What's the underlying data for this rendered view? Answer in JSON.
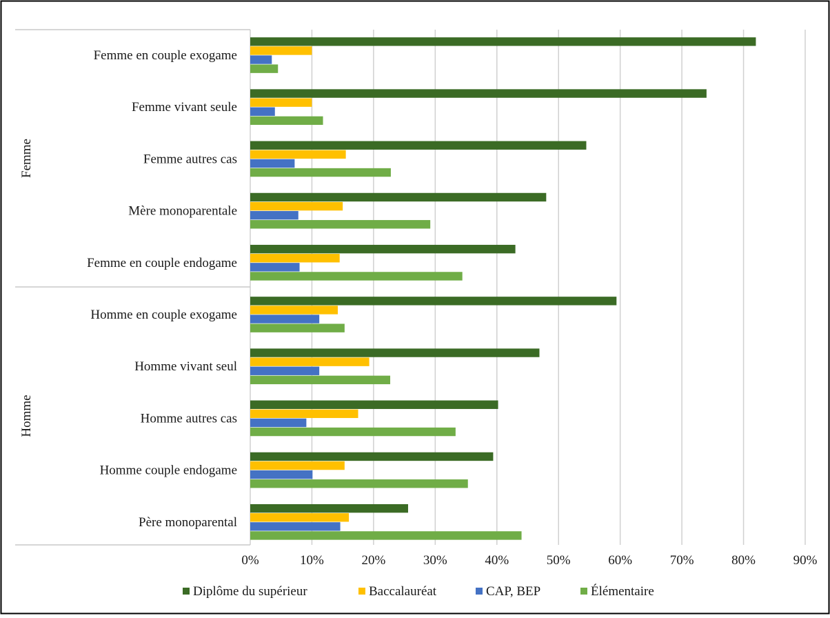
{
  "chart_data": {
    "type": "bar",
    "orientation": "horizontal",
    "title": "",
    "xlabel": "",
    "ylabel": "",
    "xlim": [
      0,
      0.9
    ],
    "x_ticks": [
      "0%",
      "10%",
      "20%",
      "30%",
      "40%",
      "50%",
      "60%",
      "70%",
      "80%",
      "90%"
    ],
    "grid": true,
    "legend_position": "bottom",
    "groups": [
      {
        "name": "Femme",
        "categories": [
          "Femme en couple exogame",
          "Femme vivant seule",
          "Femme autres cas",
          "Mère monoparentale",
          "Femme en couple endogame"
        ]
      },
      {
        "name": "Homme",
        "categories": [
          "Homme en couple exogame",
          "Homme vivant seul",
          "Homme autres cas",
          "Homme couple endogame",
          "Père monoparental"
        ]
      }
    ],
    "series": [
      {
        "name": "Diplôme du supérieur",
        "color": "#3b6b25",
        "values": [
          0.82,
          0.74,
          0.545,
          0.48,
          0.43,
          0.594,
          0.469,
          0.402,
          0.394,
          0.256
        ]
      },
      {
        "name": "Baccalauréat",
        "color": "#ffc000",
        "values": [
          0.1,
          0.1,
          0.155,
          0.15,
          0.145,
          0.142,
          0.193,
          0.175,
          0.153,
          0.16
        ]
      },
      {
        "name": "CAP, BEP",
        "color": "#4472c4",
        "values": [
          0.035,
          0.04,
          0.072,
          0.078,
          0.08,
          0.112,
          0.112,
          0.091,
          0.101,
          0.146
        ]
      },
      {
        "name": "Élémentaire",
        "color": "#70ad47",
        "values": [
          0.045,
          0.118,
          0.228,
          0.292,
          0.344,
          0.153,
          0.227,
          0.333,
          0.353,
          0.44
        ]
      }
    ]
  }
}
